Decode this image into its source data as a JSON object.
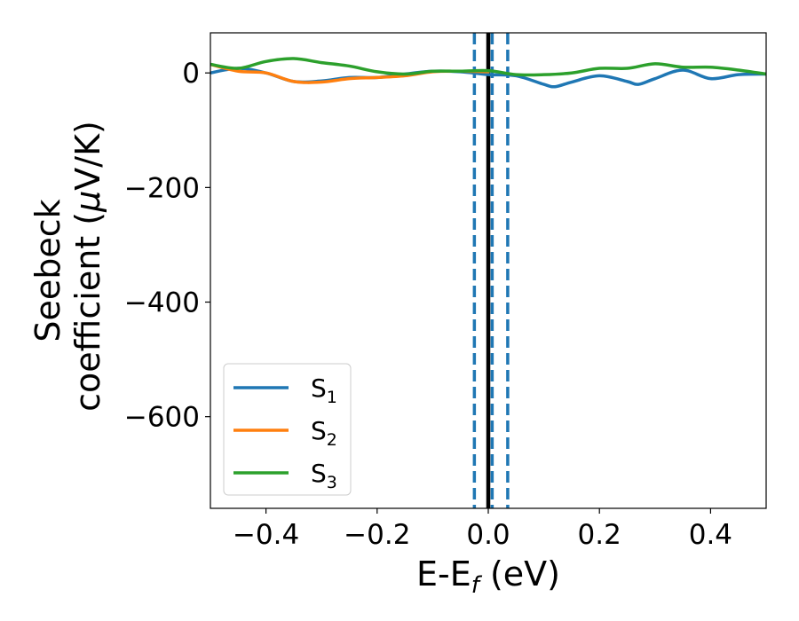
{
  "chart_data": {
    "type": "line",
    "xlabel_main": "E-E",
    "xlabel_sub": "f",
    "xlabel_unit": " (eV)",
    "ylabel_line1": "Seebeck",
    "ylabel_line2_prefix": "coefficient  (",
    "ylabel_mu": "μ",
    "ylabel_line2_suffix": "V/K)",
    "xlim": [
      -0.5,
      0.5
    ],
    "ylim": [
      -760,
      70
    ],
    "xticks": [
      -0.4,
      -0.2,
      0.0,
      0.2,
      0.4
    ],
    "xtick_labels": [
      "−0.4",
      "−0.2",
      "0.0",
      "0.2",
      "0.4"
    ],
    "yticks": [
      0,
      -200,
      -400,
      -600
    ],
    "ytick_labels": [
      "0",
      "−200",
      "−400",
      "−600"
    ],
    "grid": false,
    "legend_position": "lower-left",
    "vlines": [
      {
        "x": 0.0,
        "style": "solid",
        "color": "#000000"
      },
      {
        "x": -0.025,
        "style": "dashed",
        "color": "#1f77b4"
      },
      {
        "x": 0.007,
        "style": "dashed",
        "color": "#1f77b4"
      },
      {
        "x": 0.035,
        "style": "dashed",
        "color": "#1f77b4"
      }
    ],
    "series": [
      {
        "name": "S",
        "sub": "1",
        "color": "#1f77b4",
        "x": [
          -0.5,
          -0.45,
          -0.4,
          -0.35,
          -0.3,
          -0.25,
          -0.2,
          -0.15,
          -0.1,
          -0.05,
          0.0,
          0.05,
          0.1,
          0.12,
          0.15,
          0.2,
          0.25,
          0.27,
          0.3,
          0.35,
          0.4,
          0.45,
          0.5
        ],
        "y": [
          0,
          8,
          0,
          -15,
          -14,
          -8,
          -8,
          -2,
          3,
          2,
          -3,
          -5,
          -20,
          -24,
          -16,
          -5,
          -15,
          -20,
          -10,
          5,
          -10,
          -3,
          -2
        ]
      },
      {
        "name": "S",
        "sub": "2",
        "color": "#ff7f0e",
        "x": [
          -0.5,
          -0.45,
          -0.4,
          -0.35,
          -0.3,
          -0.25,
          -0.2,
          -0.15,
          -0.1,
          -0.05,
          0.0
        ],
        "y": [
          15,
          3,
          0,
          -15,
          -16,
          -10,
          -8,
          -5,
          2,
          3,
          2
        ]
      },
      {
        "name": "S",
        "sub": "3",
        "color": "#2ca02c",
        "x": [
          -0.5,
          -0.45,
          -0.4,
          -0.35,
          -0.3,
          -0.25,
          -0.2,
          -0.15,
          -0.1,
          -0.05,
          0.0,
          0.05,
          0.1,
          0.15,
          0.2,
          0.25,
          0.3,
          0.35,
          0.4,
          0.45,
          0.5
        ],
        "y": [
          15,
          8,
          20,
          25,
          18,
          12,
          2,
          -2,
          3,
          3,
          4,
          -3,
          -3,
          0,
          8,
          8,
          16,
          10,
          10,
          5,
          -2
        ]
      }
    ]
  }
}
